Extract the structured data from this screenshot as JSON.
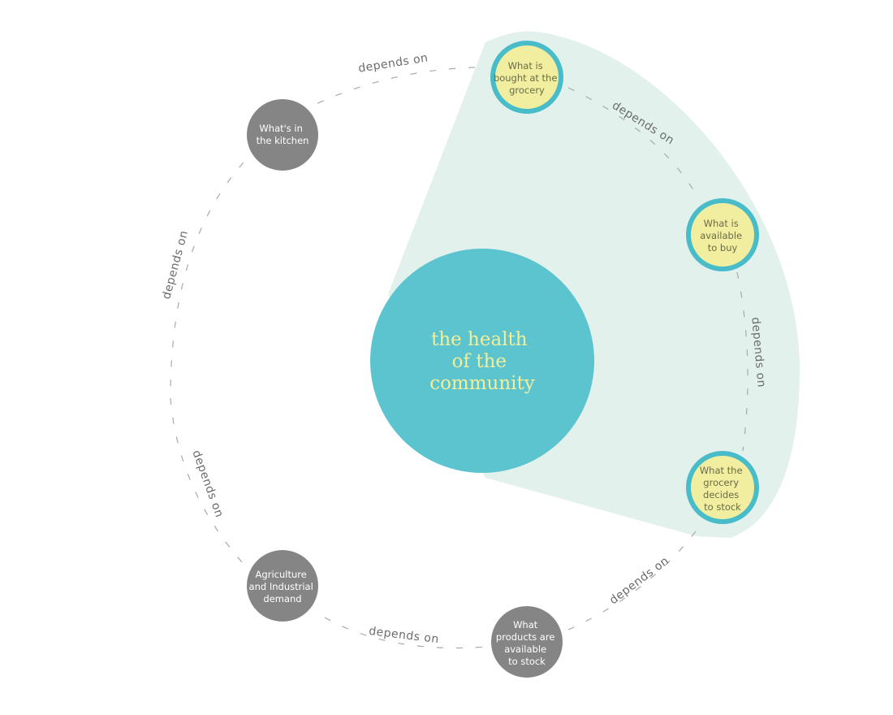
{
  "colors": {
    "sector": "#e2f1ec",
    "center": "#5bc4cf",
    "center_text": "#f2ee9a",
    "highlight_fill": "#f1ef9f",
    "highlight_ring": "#49bcca",
    "gray_node": "#858585",
    "dash": "#a9a9a9",
    "label": "#6b6b6b"
  },
  "center": {
    "lines": [
      "the health",
      "of the",
      "community"
    ]
  },
  "nodes": [
    {
      "id": "grocery-bought",
      "highlighted": true,
      "lines": [
        "What is",
        "bought at the",
        "grocery"
      ]
    },
    {
      "id": "available-to-buy",
      "highlighted": true,
      "lines": [
        "What is",
        "available",
        "to buy"
      ]
    },
    {
      "id": "grocery-stock",
      "highlighted": true,
      "lines": [
        "What the",
        "grocery",
        "decides",
        "to stock"
      ]
    },
    {
      "id": "products-available",
      "highlighted": false,
      "lines": [
        "What",
        "products are",
        "available",
        "to stock"
      ]
    },
    {
      "id": "agriculture",
      "highlighted": false,
      "lines": [
        "Agriculture",
        "and Industrial",
        "demand"
      ]
    },
    {
      "id": "kitchen",
      "highlighted": false,
      "lines": [
        "What's in",
        "the kitchen"
      ]
    }
  ],
  "edge_label": "depends on"
}
